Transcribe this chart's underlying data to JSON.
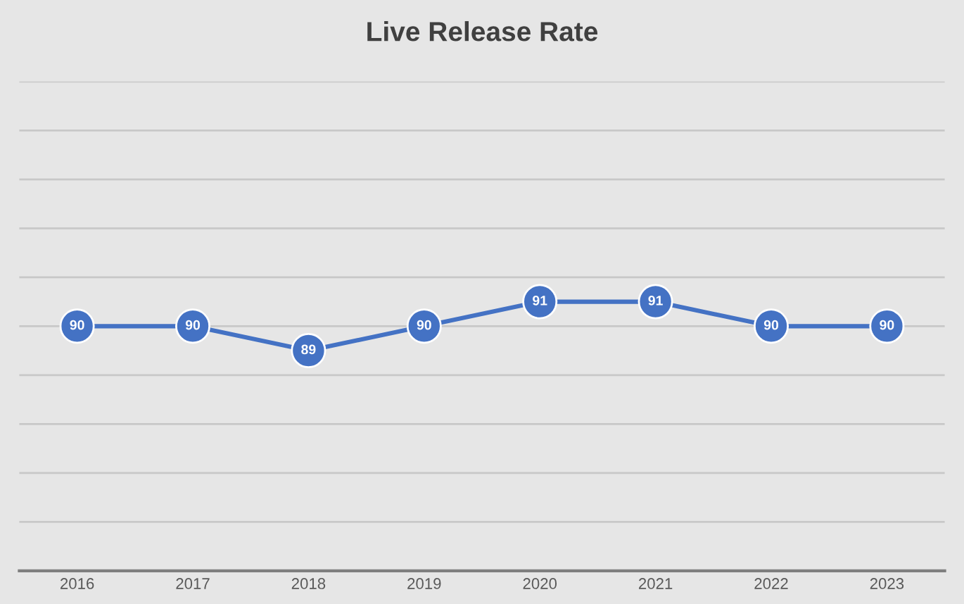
{
  "chart_data": {
    "type": "line",
    "title": "Live Release Rate",
    "categories": [
      "2016",
      "2017",
      "2018",
      "2019",
      "2020",
      "2021",
      "2022",
      "2023"
    ],
    "series": [
      {
        "color": "#4472c4",
        "values": [
          90,
          90,
          89,
          90,
          91,
          91,
          90,
          90
        ]
      }
    ],
    "ylim": [
      80,
      100
    ],
    "yticks": [
      {
        "value": 80,
        "label": null
      },
      {
        "value": 82,
        "label": null
      },
      {
        "value": 84,
        "label": null
      },
      {
        "value": 86,
        "label": null
      },
      {
        "value": 88,
        "label": null
      },
      {
        "value": 90,
        "label": null
      },
      {
        "value": 92,
        "label": null
      },
      {
        "value": 94,
        "label": null
      },
      {
        "value": 96,
        "label": null
      },
      {
        "value": 98,
        "label": null
      },
      {
        "value": 100,
        "label": null
      }
    ],
    "tick_labels": "x",
    "grid": "y",
    "marker": "circle",
    "line_style": "solid",
    "data_labels": true,
    "legend": false
  }
}
